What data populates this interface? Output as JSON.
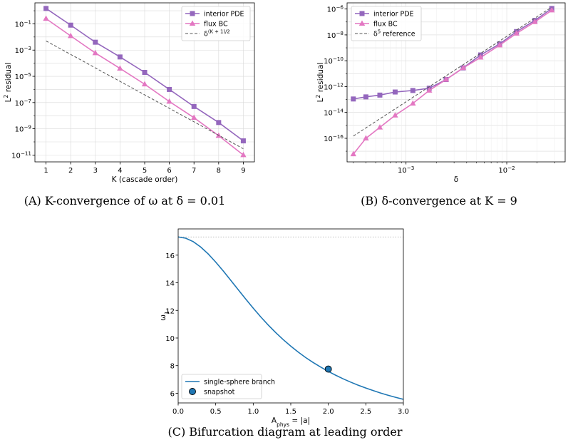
{
  "chart_data": [
    {
      "id": "a",
      "type": "line",
      "caption": "(A) K-convergence of ω at δ = 0.01",
      "caption_parts": {
        "label": "(A)",
        "text": "K-convergence of ω at δ = 0.01"
      },
      "xlabel": "K (cascade order)",
      "ylabel": "L² residual",
      "xscale": "linear",
      "yscale": "log",
      "xlim": [
        0.55,
        9.45
      ],
      "ylim": [
        3e-12,
        4
      ],
      "xticks": [
        1,
        2,
        3,
        4,
        5,
        6,
        7,
        8,
        9
      ],
      "xtick_labels": [
        "1",
        "2",
        "3",
        "4",
        "5",
        "6",
        "7",
        "8",
        "9"
      ],
      "yticks": [
        0.1,
        0.001,
        1e-05,
        1e-07,
        1e-09,
        1e-11
      ],
      "ytick_labels": [
        [
          "10",
          "−1"
        ],
        [
          "10",
          "−3"
        ],
        [
          "10",
          "−5"
        ],
        [
          "10",
          "−7"
        ],
        [
          "10",
          "−9"
        ],
        [
          "10",
          "−11"
        ]
      ],
      "grid": true,
      "legend_position": "top-right",
      "legend_entries": [
        "interior PDE",
        "flux BC",
        "δ^(K+1)/2"
      ],
      "legend_entry_parts": [
        [
          "interior PDE"
        ],
        [
          "flux BC"
        ],
        [
          "δ",
          "(K + 1)/2"
        ]
      ],
      "series": [
        {
          "name": "interior PDE",
          "color": "#9467bd",
          "marker": "square",
          "style": "solid",
          "x": [
            1,
            2,
            3,
            4,
            5,
            6,
            7,
            8,
            9
          ],
          "y": [
            1.5,
            0.08,
            0.004,
            0.0003,
            2e-05,
            1e-06,
            5e-08,
            3e-09,
            1.2e-10
          ]
        },
        {
          "name": "flux BC",
          "color": "#e377c2",
          "marker": "triangle",
          "style": "solid",
          "x": [
            1,
            2,
            3,
            4,
            5,
            6,
            7,
            8,
            9
          ],
          "y": [
            0.25,
            0.012,
            0.0006,
            4e-05,
            2.5e-06,
            1.2e-07,
            7e-09,
            3e-10,
            1e-11
          ]
        },
        {
          "name": "δ^(K+1)/2",
          "color": "#555555",
          "marker": "none",
          "style": "dashed",
          "x": [
            1,
            9
          ],
          "y": [
            0.005,
            3e-11
          ]
        }
      ]
    },
    {
      "id": "b",
      "type": "line",
      "caption": "(B) δ-convergence at K = 9",
      "caption_parts": {
        "label": "(B)",
        "text": "δ-convergence at K = 9"
      },
      "xlabel": "δ",
      "ylabel": "L² residual",
      "xscale": "log",
      "yscale": "log",
      "xlim": [
        0.00026,
        0.038
      ],
      "ylim": [
        1.5e-18,
        3e-06
      ],
      "xticks": [
        0.001,
        0.01
      ],
      "xtick_labels": [
        [
          "10",
          "−3"
        ],
        [
          "10",
          "−2"
        ]
      ],
      "yticks": [
        1e-06,
        1e-08,
        1e-10,
        1e-12,
        1e-14,
        1e-16
      ],
      "ytick_labels": [
        [
          "10",
          "−6"
        ],
        [
          "10",
          "−8"
        ],
        [
          "10",
          "−10"
        ],
        [
          "10",
          "−12"
        ],
        [
          "10",
          "−14"
        ],
        [
          "10",
          "−16"
        ]
      ],
      "grid": true,
      "legend_position": "top-left",
      "legend_entries": [
        "interior PDE",
        "flux BC",
        "δ^5 reference"
      ],
      "legend_entry_parts": [
        [
          "interior PDE"
        ],
        [
          "flux BC"
        ],
        [
          "δ",
          "5",
          " reference"
        ]
      ],
      "series": [
        {
          "name": "interior PDE",
          "color": "#9467bd",
          "marker": "square",
          "style": "solid",
          "x": [
            0.0003,
            0.0004,
            0.00055,
            0.00078,
            0.00117,
            0.0017,
            0.0025,
            0.0037,
            0.0055,
            0.0085,
            0.0125,
            0.019,
            0.028
          ],
          "y": [
            1.1e-13,
            1.6e-13,
            2.2e-13,
            3.8e-13,
            5e-13,
            7.5e-13,
            3.5e-12,
            2.8e-11,
            2.8e-10,
            2e-09,
            1.8e-08,
            1.3e-07,
            1.1e-06
          ]
        },
        {
          "name": "flux BC",
          "color": "#e377c2",
          "marker": "triangle",
          "style": "solid",
          "x": [
            0.0003,
            0.0004,
            0.00055,
            0.00078,
            0.00117,
            0.0017,
            0.0025,
            0.0037,
            0.0055,
            0.0085,
            0.0125,
            0.019,
            0.028
          ],
          "y": [
            6e-18,
            1e-16,
            7e-16,
            6e-15,
            5e-14,
            5e-13,
            3.5e-12,
            2.8e-11,
            1.8e-10,
            1.6e-09,
            1.3e-08,
            1e-07,
            8e-07
          ]
        },
        {
          "name": "δ^5 reference",
          "color": "#555555",
          "marker": "none",
          "style": "dashed",
          "x": [
            0.0003,
            0.028
          ],
          "y": [
            1.5e-16,
            1.4e-06
          ]
        }
      ]
    },
    {
      "id": "c",
      "type": "line",
      "caption": "(C) Bifurcation diagram at leading order",
      "caption_parts": {
        "label": "(C)",
        "text": "Bifurcation diagram at leading order"
      },
      "xlabel": "A_phys = |a|",
      "xlabel_parts": [
        "A",
        "phys",
        " = |a|"
      ],
      "ylabel": "ω_1",
      "ylabel_parts": [
        "ω",
        "1"
      ],
      "xscale": "linear",
      "yscale": "linear",
      "xlim": [
        0,
        3.0
      ],
      "ylim": [
        5.3,
        17.9
      ],
      "xticks": [
        0,
        0.5,
        1.0,
        1.5,
        2.0,
        2.5,
        3.0
      ],
      "xtick_labels": [
        "0.0",
        "0.5",
        "1.0",
        "1.5",
        "2.0",
        "2.5",
        "3.0"
      ],
      "yticks": [
        6,
        8,
        10,
        12,
        14,
        16
      ],
      "ytick_labels": [
        "6",
        "8",
        "10",
        "12",
        "14",
        "16"
      ],
      "grid": false,
      "reference_line_y": 17.32,
      "legend_position": "bottom-left",
      "legend_entries": [
        "single-sphere branch",
        "snapshot"
      ],
      "series": [
        {
          "name": "single-sphere branch",
          "color": "#1f77b4",
          "marker": "none",
          "style": "solid",
          "x": [
            0,
            0.1,
            0.2,
            0.3,
            0.4,
            0.5,
            0.6,
            0.7,
            0.8,
            0.9,
            1.0,
            1.1,
            1.2,
            1.3,
            1.4,
            1.5,
            1.6,
            1.7,
            1.8,
            1.9,
            2.0,
            2.1,
            2.2,
            2.3,
            2.4,
            2.5,
            2.6,
            2.7,
            2.8,
            2.9,
            3.0
          ],
          "y": [
            17.32,
            17.23,
            16.98,
            16.59,
            16.09,
            15.5,
            14.86,
            14.18,
            13.5,
            12.82,
            12.16,
            11.53,
            10.94,
            10.39,
            9.88,
            9.41,
            8.98,
            8.58,
            8.22,
            7.89,
            7.58,
            7.3,
            7.04,
            6.8,
            6.58,
            6.38,
            6.19,
            6.01,
            5.85,
            5.7,
            5.56
          ]
        },
        {
          "name": "snapshot",
          "color": "#1f77b4",
          "marker": "circle",
          "style": "none",
          "x": [
            2.0
          ],
          "y": [
            7.75
          ]
        }
      ]
    }
  ]
}
